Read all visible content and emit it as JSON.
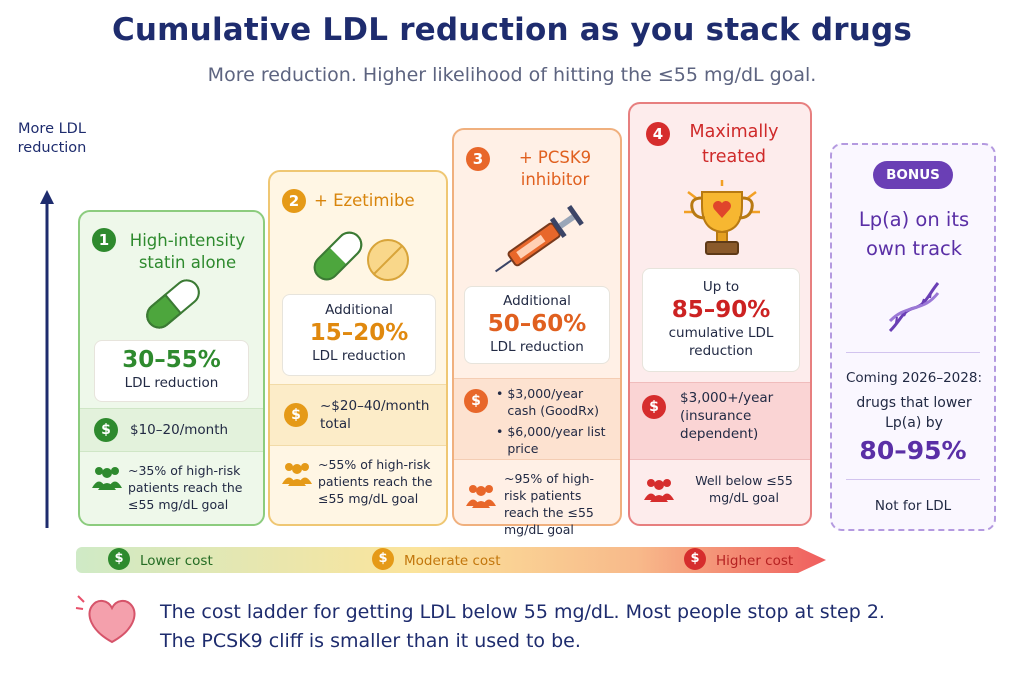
{
  "title": "Cumulative LDL reduction as you stack drugs",
  "subtitle": "More reduction. Higher likelihood of hitting the ≤55 mg/dL goal.",
  "axis": {
    "label": "More LDL reduction"
  },
  "colors": {
    "green": "#2e8a2e",
    "yellow": "#e59a18",
    "orange": "#e8672a",
    "red": "#d62d2d",
    "purple": "#6a3fb5",
    "navy": "#1e2c6e"
  },
  "steps": [
    {
      "number": "1",
      "title": "High-intensity statin alone",
      "reduction_prefix": "",
      "reduction": "30–55%",
      "reduction_suffix": "LDL reduction",
      "cost": "$10–20/month",
      "outcome": "~35% of high-risk patients reach the ≤55 mg/dL goal",
      "icon": "capsule-icon"
    },
    {
      "number": "2",
      "title": "+ Ezetimibe",
      "reduction_prefix": "Additional",
      "reduction": "15–20%",
      "reduction_suffix": "LDL reduction",
      "cost": "~$20–40/month total",
      "outcome": "~55% of high-risk patients reach the ≤55 mg/dL goal",
      "icon": "pill-and-tablet-icon"
    },
    {
      "number": "3",
      "title": "+ PCSK9 inhibitor",
      "reduction_prefix": "Additional",
      "reduction": "50–60%",
      "reduction_suffix": "LDL reduction",
      "cost_items": [
        "$3,000/year cash (GoodRx)",
        "$6,000/year list price"
      ],
      "outcome": "~95% of high-risk patients reach the ≤55 mg/dL goal",
      "icon": "syringe-icon"
    },
    {
      "number": "4",
      "title": "Maximally treated",
      "reduction_prefix": "Up to",
      "reduction": "85–90%",
      "reduction_suffix": "cumulative LDL reduction",
      "cost": "$3,000+/year (insurance dependent)",
      "outcome": "Well below ≤55 mg/dL goal",
      "icon": "trophy-icon"
    }
  ],
  "bonus": {
    "badge": "BONUS",
    "title": "Lp(a) on its own track",
    "coming": "Coming 2026–2028:",
    "desc": "drugs that lower Lp(a) by",
    "value": "80–95%",
    "note": "Not for LDL",
    "icon": "dna-icon"
  },
  "cost_scale": {
    "low": "Lower cost",
    "mid": "Moderate cost",
    "high": "Higher cost",
    "symbol": "$"
  },
  "footer": {
    "line1": "The cost ladder for getting LDL below 55 mg/dL.  Most people stop at step 2.",
    "line2": "The PCSK9 cliff is smaller than it used to be."
  }
}
